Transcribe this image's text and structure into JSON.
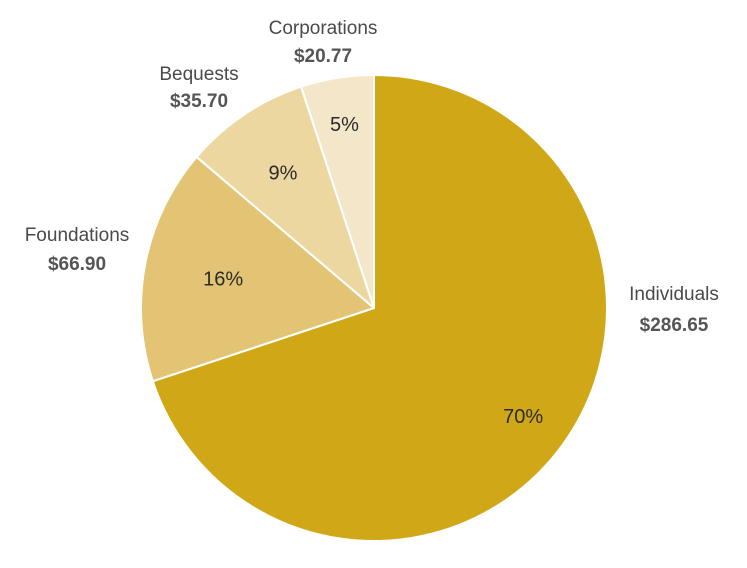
{
  "chart_data": {
    "type": "pie",
    "start": "12 o'clock",
    "direction": "clockwise",
    "slices": [
      {
        "category": "Individuals",
        "value": 286.65,
        "value_label": "$286.65",
        "percent_label": "70%",
        "color": "#D0A817"
      },
      {
        "category": "Foundations",
        "value": 66.9,
        "value_label": "$66.90",
        "percent_label": "16%",
        "color": "#E2C474"
      },
      {
        "category": "Bequests",
        "value": 35.7,
        "value_label": "$35.70",
        "percent_label": "9%",
        "color": "#EDD7A1"
      },
      {
        "category": "Corporations",
        "value": 20.77,
        "value_label": "$20.77",
        "percent_label": "5%",
        "color": "#F4E6C8"
      }
    ]
  }
}
